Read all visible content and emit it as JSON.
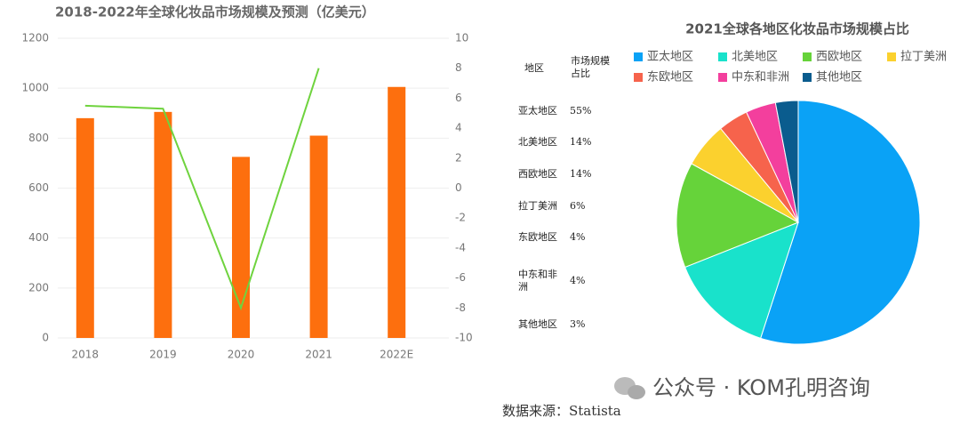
{
  "chart_data": [
    {
      "type": "bar",
      "title": "2018-2022年全球化妆品市场规模及预测（亿美元）",
      "categories": [
        "2018",
        "2019",
        "2020",
        "2021",
        "2022E"
      ],
      "series": [
        {
          "type": "bar",
          "color": "#fd6f0e",
          "values": [
            880,
            905,
            725,
            810,
            1005
          ]
        },
        {
          "type": "line",
          "axis": "y2",
          "color": "#6fd33e",
          "values": [
            5.5,
            5.3,
            -8,
            8,
            null
          ]
        }
      ],
      "ylim": [
        0,
        1200
      ],
      "yticks": [
        0,
        200,
        400,
        600,
        800,
        1000,
        1200
      ],
      "y2lim": [
        -10,
        10
      ],
      "y2ticks": [
        -10,
        -8,
        -6,
        -4,
        -2,
        0,
        2,
        4,
        6,
        8,
        10
      ],
      "grid": true
    },
    {
      "type": "pie",
      "title": "2021全球各地区化妆品市场规模占比",
      "table_headers": [
        "地区",
        "市场规模占比"
      ],
      "categories": [
        "亚太地区",
        "北美地区",
        "西欧地区",
        "拉丁美洲",
        "东欧地区",
        "中东和非洲",
        "其他地区"
      ],
      "values": [
        55,
        14,
        14,
        6,
        4,
        4,
        3
      ],
      "value_labels": [
        "55%",
        "14%",
        "14%",
        "6%",
        "4%",
        "4%",
        "3%"
      ],
      "colors": [
        "#0aa2f6",
        "#19e2cb",
        "#66d33a",
        "#fbd12e",
        "#f6634c",
        "#f33f9d",
        "#0a5c8e"
      ],
      "legend": "top"
    }
  ],
  "source": "数据来源：Statista",
  "watermark": "公众号 · KOM孔明咨询"
}
